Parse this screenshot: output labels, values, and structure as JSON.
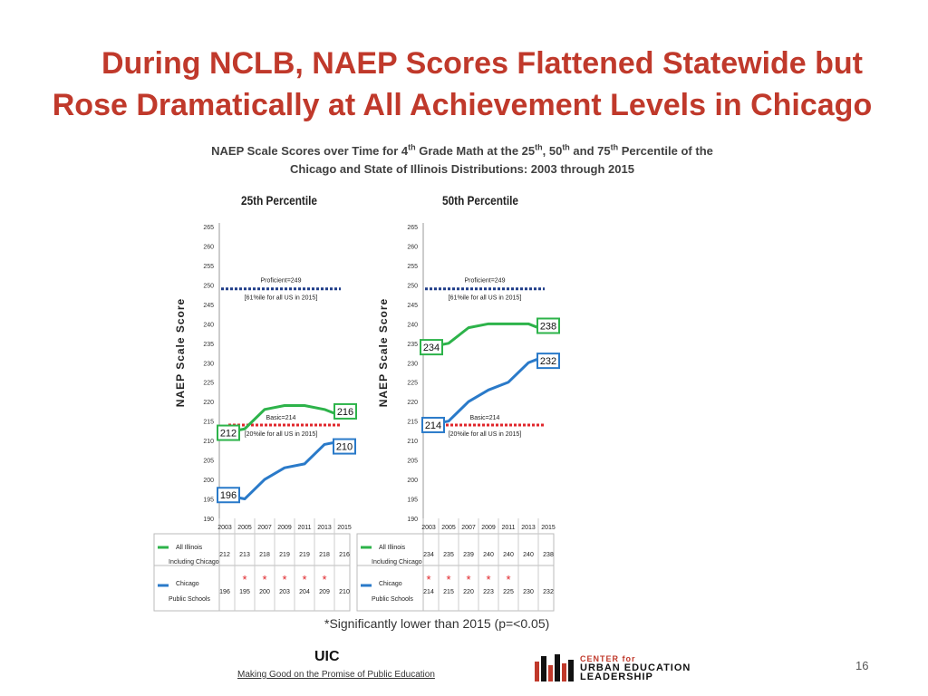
{
  "slide": {
    "title_line1": "During NCLB, NAEP Scores Flattened Statewide but",
    "title_line2": "Rose Dramatically at All Achievement Levels in Chicago",
    "subtitle_line1_a": "NAEP Scale Scores over Time for 4",
    "subtitle_line1_sup1": "th",
    "subtitle_line1_b": " Grade Math at the 25",
    "subtitle_line1_sup2": "th",
    "subtitle_line1_c": ", 50",
    "subtitle_line1_sup3": "th",
    "subtitle_line1_d": " and 75",
    "subtitle_line1_sup4": "th",
    "subtitle_line1_e": " Percentile of the",
    "subtitle_line2": "Chicago and State of Illinois Distributions:  2003 through 2015",
    "footnote": "*Significantly lower than 2015 (p=<0.05)",
    "footer_uic": "UIC",
    "footer_tagline": "Making Good on the Promise of Public Education",
    "logo_top": "CENTER for",
    "logo_mid": "URBAN EDUCATION",
    "logo_bot": "LEADERSHIP",
    "page_number": "16"
  },
  "colors": {
    "illinois": "#2db34a",
    "chicago": "#2a7ac9",
    "proficient_line": "#1f3c88",
    "basic_line": "#e0262b",
    "title": "#c0392b",
    "star": "#e0262b"
  },
  "chart_data": [
    {
      "type": "line",
      "title": "25th Percentile",
      "ylabel": "NAEP Scale Score",
      "x": [
        "2003",
        "2005",
        "2007",
        "2009",
        "2011",
        "2013",
        "2015"
      ],
      "ylim": [
        190,
        265
      ],
      "yticks": [
        "265",
        "260",
        "255",
        "250",
        "245",
        "240",
        "235",
        "230",
        "225",
        "220",
        "215",
        "210",
        "205",
        "200",
        "195",
        "190"
      ],
      "series": [
        {
          "name": "All Illinois Including Chicago",
          "key": "illinois",
          "values": [
            212,
            213,
            218,
            219,
            219,
            218,
            216
          ]
        },
        {
          "name": "Chicago Public Schools",
          "key": "chicago",
          "values": [
            196,
            195,
            200,
            203,
            204,
            209,
            210
          ]
        }
      ],
      "table_values": {
        "illinois": [
          "212",
          "213",
          "218",
          "219",
          "219",
          "218",
          "216"
        ],
        "chicago": [
          "196",
          "195",
          "200",
          "203",
          "204",
          "209",
          "210"
        ]
      },
      "significant_chicago_years": [
        "2005",
        "2007",
        "2009",
        "2011",
        "2013"
      ],
      "reference_lines": [
        {
          "key": "proficient",
          "value": 249,
          "label": "Proficient=249",
          "note": "[61%ile for all US in 2015]"
        },
        {
          "key": "basic",
          "value": 214,
          "label": "Basic=214",
          "note": "[20%ile for all US in 2015]"
        }
      ],
      "callouts": {
        "illinois_start": "212",
        "illinois_end": "216",
        "chicago_start": "196",
        "chicago_end": "210"
      },
      "table_labels": {
        "illinois_line1": "All Illinois",
        "illinois_line2": "Including Chicago",
        "chicago_line1": "Chicago",
        "chicago_line2": "Public Schools"
      }
    },
    {
      "type": "line",
      "title": "50th Percentile",
      "ylabel": "NAEP Scale Score",
      "x": [
        "2003",
        "2005",
        "2007",
        "2009",
        "2011",
        "2013",
        "2015"
      ],
      "ylim": [
        190,
        265
      ],
      "yticks": [
        "265",
        "260",
        "255",
        "250",
        "245",
        "240",
        "235",
        "230",
        "225",
        "220",
        "215",
        "210",
        "205",
        "200",
        "195",
        "190"
      ],
      "series": [
        {
          "name": "All Illinois Including Chicago",
          "key": "illinois",
          "values": [
            234,
            235,
            239,
            240,
            240,
            240,
            238
          ]
        },
        {
          "name": "Chicago Public Schools",
          "key": "chicago",
          "values": [
            214,
            215,
            220,
            223,
            225,
            230,
            232
          ]
        }
      ],
      "table_values": {
        "illinois": [
          "234",
          "235",
          "239",
          "240",
          "240",
          "240",
          "238"
        ],
        "chicago": [
          "214",
          "215",
          "220",
          "223",
          "225",
          "230",
          "232"
        ]
      },
      "significant_chicago_years": [
        "2003",
        "2005",
        "2007",
        "2009",
        "2011"
      ],
      "reference_lines": [
        {
          "key": "proficient",
          "value": 249,
          "label": "Proficient=249",
          "note": "[61%ile for all US in 2015]"
        },
        {
          "key": "basic",
          "value": 214,
          "label": "Basic=214",
          "note": "[20%ile for all US in 2015]"
        }
      ],
      "callouts": {
        "illinois_start": "234",
        "illinois_end": "238",
        "chicago_start": "214",
        "chicago_end": "232"
      },
      "table_labels": {
        "illinois_line1": "All Illinois",
        "illinois_line2": "Including Chicago",
        "chicago_line1": "Chicago",
        "chicago_line2": "Public Schools"
      }
    }
  ]
}
